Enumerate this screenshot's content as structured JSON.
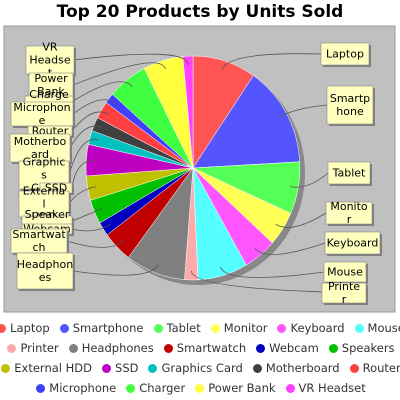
{
  "chart_data": {
    "type": "pie",
    "title": "Top 20 Products by Units Sold",
    "slices": [
      {
        "label": "Laptop",
        "value": 9.5,
        "color": "#ff5555"
      },
      {
        "label": "Smartphone",
        "value": 14.5,
        "color": "#5555ff"
      },
      {
        "label": "Tablet",
        "value": 7.5,
        "color": "#55ff55"
      },
      {
        "label": "Monitor",
        "value": 5.0,
        "color": "#ffff55"
      },
      {
        "label": "Keyboard",
        "value": 5.0,
        "color": "#ff55ff"
      },
      {
        "label": "Mouse",
        "value": 7.5,
        "color": "#55ffff"
      },
      {
        "label": "Printer",
        "value": 2.0,
        "color": "#ffaaaa"
      },
      {
        "label": "Headphones",
        "value": 9.0,
        "color": "#808080"
      },
      {
        "label": "Smartwatch",
        "value": 4.5,
        "color": "#c00000"
      },
      {
        "label": "Webcam",
        "value": 2.0,
        "color": "#0000c0"
      },
      {
        "label": "Speakers",
        "value": 3.5,
        "color": "#00c000"
      },
      {
        "label": "External HDD",
        "value": 3.5,
        "color": "#c0c000"
      },
      {
        "label": "SSD",
        "value": 4.5,
        "color": "#c000c0"
      },
      {
        "label": "Graphics Card",
        "value": 2.0,
        "color": "#00c0c0"
      },
      {
        "label": "Motherboard",
        "value": 2.0,
        "color": "#404040"
      },
      {
        "label": "Router",
        "value": 2.5,
        "color": "#ff4040"
      },
      {
        "label": "Microphone",
        "value": 1.5,
        "color": "#4040ff"
      },
      {
        "label": "Charger",
        "value": 6.0,
        "color": "#40ff40"
      },
      {
        "label": "Power Bank",
        "value": 6.0,
        "color": "#ffff40"
      },
      {
        "label": "VR Headset",
        "value": 1.5,
        "color": "#ff40ff"
      }
    ],
    "legend_position": "bottom",
    "plot_background": "#c0c0c0",
    "label_box_color": "#ffffc0"
  }
}
